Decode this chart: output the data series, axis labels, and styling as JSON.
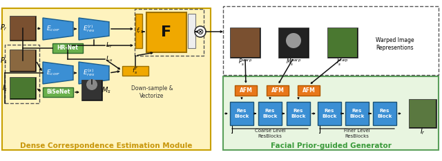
{
  "fig_width": 6.4,
  "fig_height": 2.34,
  "dpi": 100,
  "bg_yellow": "#FEF3BE",
  "bg_green": "#E8F5E0",
  "bg_white": "#FFFFFF",
  "blue_block": "#3B8FD4",
  "green_block": "#6AB04C",
  "orange_block": "#E8771A",
  "gold_block": "#F0A800",
  "gold_F": "#F0A800",
  "title_yellow": "#C8960A",
  "title_green": "#3A9A3A",
  "left_title": "Dense Correspondence Estimation Module",
  "right_title": "Facial Prior-guided Generator",
  "warped_text": "Warped Image\nRepresentions",
  "coarse_text": "Coarse Level\nResBlocks",
  "finer_text": "Finer Level\nResBlocks",
  "downsample_text": "Down-sample &\nVectorize"
}
